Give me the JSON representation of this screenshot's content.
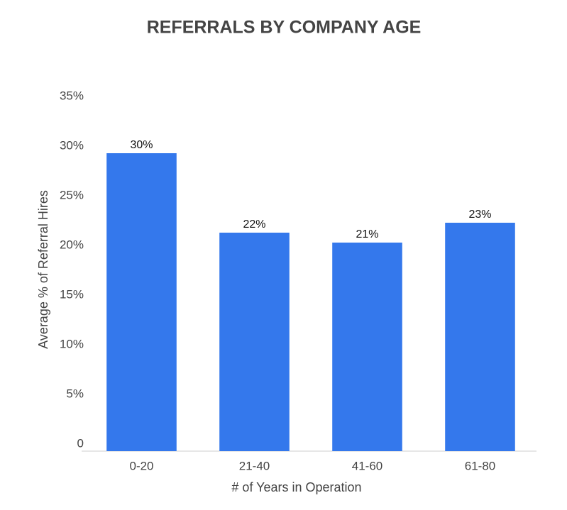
{
  "chart_data": {
    "type": "bar",
    "title": "REFERRALS BY COMPANY AGE",
    "x_label": "# of Years in Operation",
    "y_label": "Average % of Referral Hires",
    "categories": [
      "0-20",
      "21-40",
      "41-60",
      "61-80"
    ],
    "values": [
      30,
      22,
      21,
      23
    ],
    "value_labels": [
      "30%",
      "22%",
      "21%",
      "23%"
    ],
    "color": "#3478ec",
    "ylim": [
      0,
      35
    ],
    "yticks": [
      0,
      {
        "value": 5,
        "label": "5%"
      },
      {
        "value": 10,
        "label": "10%"
      },
      {
        "value": 15,
        "label": "15%"
      },
      {
        "value": 20,
        "label": "20%"
      },
      {
        "value": 25,
        "label": "25%"
      },
      {
        "value": 30,
        "label": "30%"
      },
      {
        "value": 35,
        "label": "35%"
      }
    ],
    "grid": false
  }
}
